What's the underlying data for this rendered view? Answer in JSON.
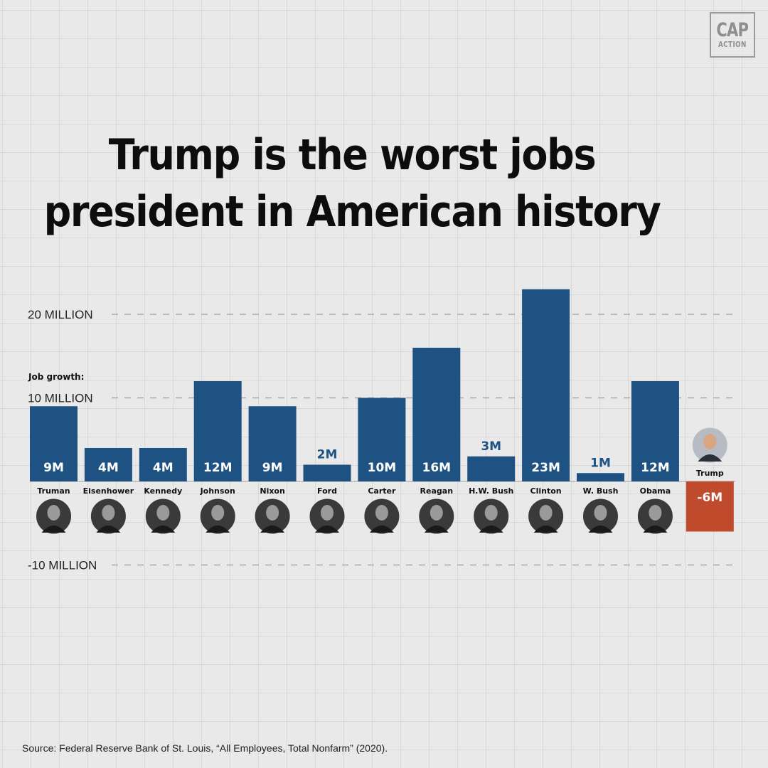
{
  "brand": {
    "line1": "CAP",
    "line2": "ACTION"
  },
  "title_lines": [
    "Trump is the worst jobs",
    "president in American history"
  ],
  "source": "Source: Federal Reserve Bank of St. Louis, “All Employees, Total Nonfarm” (2020).",
  "colors": {
    "positive": "#1e5283",
    "negative": "#c04a2c",
    "background": "#e9e9e9",
    "grid": "#d8d8d8"
  },
  "chart_data": {
    "type": "bar",
    "title": "Trump is the worst jobs president in American history",
    "ylabel": "Job growth:",
    "ylim": [
      -12,
      24
    ],
    "yticks": [
      {
        "value": 20,
        "label": "20 MILLION"
      },
      {
        "value": 10,
        "label": "10 MILLION"
      },
      {
        "value": -10,
        "label": "-10 MILLION"
      }
    ],
    "grid": "dashed",
    "categories": [
      "Truman",
      "Eisenhower",
      "Kennedy",
      "Johnson",
      "Nixon",
      "Ford",
      "Carter",
      "Reagan",
      "H.W. Bush",
      "Clinton",
      "W. Bush",
      "Obama",
      "Trump"
    ],
    "values": [
      9,
      4,
      4,
      12,
      9,
      2,
      10,
      16,
      3,
      23,
      1,
      12,
      -6
    ],
    "value_labels": [
      "9M",
      "4M",
      "4M",
      "12M",
      "9M",
      "2M",
      "10M",
      "16M",
      "3M",
      "23M",
      "1M",
      "12M",
      "-6M"
    ],
    "units": "millions of jobs"
  }
}
